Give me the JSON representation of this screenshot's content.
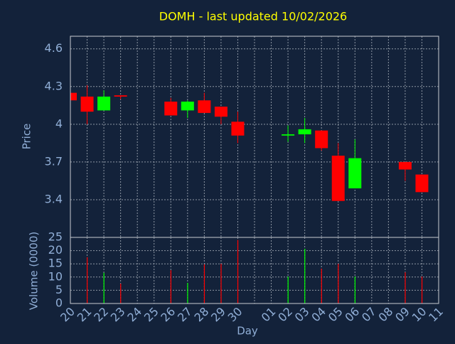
{
  "chart_data": [
    {
      "type": "candlestick",
      "title": "DOMH - last updated 10/02/2026",
      "ylabel": "Price",
      "open": [
        4.25,
        4.22,
        4.11,
        4.23,
        null,
        null,
        4.18,
        4.11,
        4.19,
        4.14,
        4.02,
        null,
        null,
        3.91,
        3.92,
        3.95,
        3.75,
        3.49,
        null,
        null,
        3.7,
        3.6,
        null
      ],
      "high": [
        4.25,
        4.31,
        4.27,
        4.23,
        null,
        null,
        4.21,
        4.19,
        4.25,
        4.14,
        4.1,
        null,
        null,
        3.99,
        4.05,
        3.95,
        3.85,
        3.88,
        null,
        null,
        3.7,
        3.6,
        null
      ],
      "low": [
        4.19,
        4.0,
        4.11,
        4.2,
        null,
        null,
        4.07,
        4.05,
        4.09,
        4.0,
        3.85,
        null,
        null,
        3.86,
        3.85,
        3.79,
        3.39,
        3.49,
        null,
        null,
        3.55,
        3.46,
        null
      ],
      "close": [
        4.19,
        4.1,
        4.22,
        4.22,
        null,
        null,
        4.07,
        4.18,
        4.09,
        4.06,
        3.91,
        null,
        null,
        3.92,
        3.96,
        3.81,
        3.39,
        3.73,
        null,
        null,
        3.64,
        3.46,
        null
      ],
      "up_color": "#00ff00",
      "down_color": "#ff0000",
      "ylim": [
        3.1,
        4.7
      ],
      "yticks": [
        3.4,
        3.7,
        4,
        4.3,
        4.6
      ],
      "grid": true
    },
    {
      "type": "bar",
      "ylabel": "Volume (0000)",
      "xlabel": "Day",
      "categories": [
        "20",
        "21",
        "22",
        "23",
        "24",
        "25",
        "26",
        "27",
        "28",
        "29",
        "30",
        null,
        "01",
        "02",
        "03",
        "04",
        "05",
        "06",
        "07",
        "08",
        "09",
        "10",
        "11"
      ],
      "values": [
        null,
        17.5,
        11.6,
        7.5,
        null,
        null,
        12.6,
        7.8,
        14.8,
        15,
        24,
        null,
        null,
        10.2,
        20.7,
        13.2,
        15,
        10.2,
        null,
        null,
        11.8,
        10.2,
        null
      ],
      "colors": [
        null,
        "#ff0000",
        "#00ff00",
        "#ff0000",
        null,
        null,
        "#ff0000",
        "#00ff00",
        "#ff0000",
        "#ff0000",
        "#ff0000",
        null,
        null,
        "#00ff00",
        "#00ff00",
        "#ff0000",
        "#ff0000",
        "#00ff00",
        null,
        null,
        "#ff0000",
        "#ff0000",
        null
      ],
      "ylim": [
        0,
        25
      ],
      "yticks": [
        0,
        5,
        10,
        15,
        20,
        25
      ],
      "grid": true
    }
  ]
}
